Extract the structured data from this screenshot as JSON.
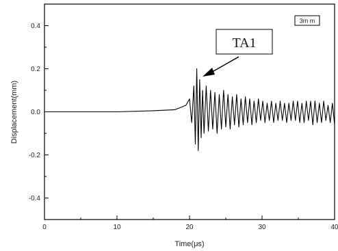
{
  "chart_data": {
    "type": "line",
    "xlabel": "Time(μs)",
    "ylabel": "Displacement(mm)",
    "xlim": [
      0,
      40
    ],
    "ylim": [
      -0.5,
      0.5
    ],
    "xticks": [
      "0",
      "10",
      "20",
      "30",
      "40"
    ],
    "yticks": [
      "0.4",
      "0.2",
      "0.0",
      "-0.2",
      "-0.4"
    ],
    "grid": false,
    "legend": {
      "label": "3m m",
      "position": "top-right"
    },
    "annotation": {
      "text": "TA1",
      "x": 21,
      "y": 0.2
    },
    "series": [
      {
        "color": "#000000",
        "x": [
          0,
          5,
          10,
          15,
          18,
          19.5,
          20,
          20.3,
          20.6,
          20.8,
          21.0,
          21.2,
          21.4,
          21.6,
          21.8,
          22.0,
          22.3,
          22.6,
          22.9,
          23.2,
          23.5,
          23.8,
          24.1,
          24.4,
          24.7,
          25.0,
          25.3,
          25.6,
          25.9,
          26.2,
          26.5,
          26.8,
          27.1,
          27.4,
          27.7,
          28.0,
          28.3,
          28.6,
          28.9,
          29.2,
          29.5,
          29.8,
          30.1,
          30.4,
          30.7,
          31.0,
          31.3,
          31.6,
          31.9,
          32.2,
          32.5,
          32.8,
          33.1,
          33.4,
          33.7,
          34.0,
          34.3,
          34.6,
          34.9,
          35.2,
          35.5,
          35.8,
          36.1,
          36.4,
          36.7,
          37.0,
          37.3,
          37.6,
          37.9,
          38.2,
          38.5,
          38.8,
          39.1,
          39.4,
          39.7,
          40.0
        ],
        "y": [
          0.0,
          0.0,
          0.0,
          0.005,
          0.01,
          0.03,
          0.06,
          -0.05,
          0.12,
          -0.15,
          0.2,
          -0.18,
          0.15,
          -0.12,
          0.1,
          -0.1,
          0.12,
          -0.09,
          0.1,
          -0.08,
          0.09,
          -0.1,
          0.08,
          -0.08,
          0.1,
          -0.07,
          0.08,
          -0.08,
          0.07,
          -0.06,
          0.08,
          -0.07,
          0.06,
          -0.06,
          0.07,
          -0.05,
          0.06,
          -0.06,
          0.05,
          -0.05,
          0.06,
          -0.04,
          0.05,
          -0.05,
          0.04,
          -0.04,
          0.05,
          -0.05,
          0.04,
          -0.04,
          0.05,
          -0.04,
          0.04,
          -0.05,
          0.04,
          -0.04,
          0.05,
          -0.04,
          0.05,
          -0.05,
          0.04,
          -0.05,
          0.05,
          -0.04,
          0.05,
          -0.06,
          0.05,
          -0.05,
          0.04,
          -0.05,
          0.05,
          -0.04,
          0.03,
          -0.05,
          0.04,
          -0.06
        ]
      }
    ]
  }
}
